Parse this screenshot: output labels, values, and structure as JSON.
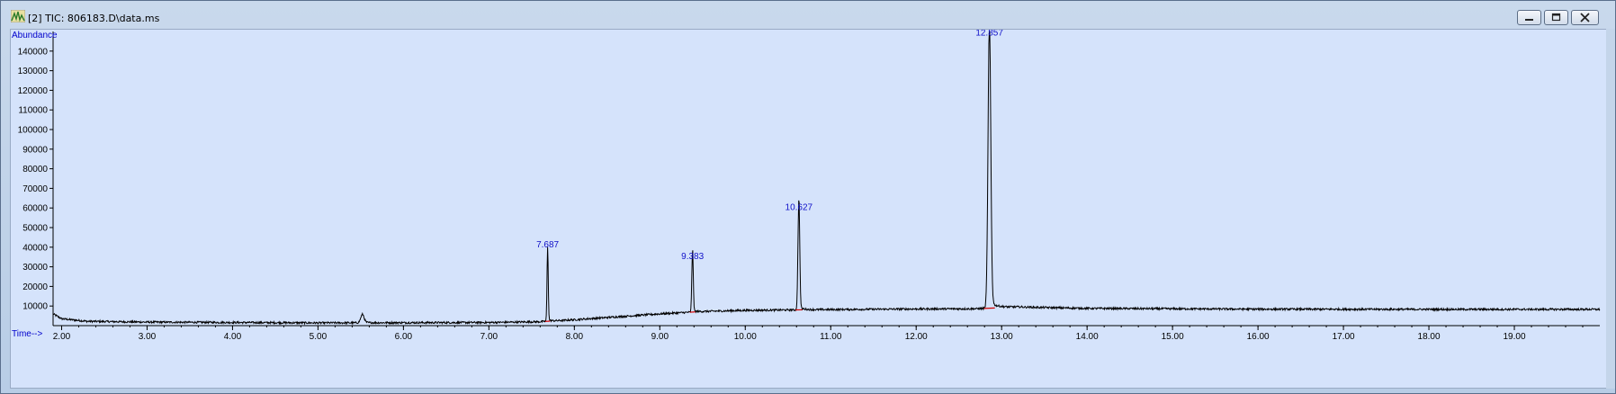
{
  "window": {
    "title": "[2] TIC: 806183.D\\data.ms",
    "app_icon": "chromatogram-app-icon",
    "controls": [
      "minimize-icon",
      "restore-icon",
      "close-icon"
    ]
  },
  "chart_data": {
    "type": "line",
    "title": "",
    "xlabel": "Time-->",
    "ylabel": "Abundance",
    "xlim": [
      1.9,
      20.0
    ],
    "ylim": [
      0,
      150000
    ],
    "x_ticks": [
      2.0,
      3.0,
      4.0,
      5.0,
      6.0,
      7.0,
      8.0,
      9.0,
      10.0,
      11.0,
      12.0,
      13.0,
      14.0,
      15.0,
      16.0,
      17.0,
      18.0,
      19.0
    ],
    "x_tick_labels": [
      "2.00",
      "3.00",
      "4.00",
      "5.00",
      "6.00",
      "7.00",
      "8.00",
      "9.00",
      "10.00",
      "11.00",
      "12.00",
      "13.00",
      "14.00",
      "15.00",
      "16.00",
      "17.00",
      "18.00",
      "19.00"
    ],
    "y_ticks": [
      10000,
      20000,
      30000,
      40000,
      50000,
      60000,
      70000,
      80000,
      90000,
      100000,
      110000,
      120000,
      130000,
      140000
    ],
    "y_tick_labels": [
      "10000",
      "20000",
      "30000",
      "40000",
      "50000",
      "60000",
      "70000",
      "80000",
      "90000",
      "100000",
      "110000",
      "120000",
      "130000",
      "140000"
    ],
    "grid": false,
    "series": [
      {
        "baseline": [
          [
            1.9,
            6000
          ],
          [
            2.0,
            3500
          ],
          [
            2.3,
            2200
          ],
          [
            3.0,
            1800
          ],
          [
            5.0,
            1400
          ],
          [
            7.0,
            1600
          ],
          [
            7.6,
            2000
          ],
          [
            8.0,
            3000
          ],
          [
            8.5,
            4500
          ],
          [
            9.0,
            6000
          ],
          [
            9.5,
            7200
          ],
          [
            10.0,
            7800
          ],
          [
            11.0,
            8200
          ],
          [
            12.0,
            8500
          ],
          [
            12.7,
            8600
          ],
          [
            13.2,
            9500
          ],
          [
            14.0,
            8800
          ],
          [
            16.0,
            8400
          ],
          [
            18.0,
            8300
          ],
          [
            20.0,
            8300
          ]
        ],
        "peaks": [
          {
            "rt": 5.52,
            "height": 4200,
            "width": 0.02
          },
          {
            "rt": 7.687,
            "height": 38000,
            "width": 0.007
          },
          {
            "rt": 9.383,
            "height": 32000,
            "width": 0.008
          },
          {
            "rt": 10.627,
            "height": 57000,
            "width": 0.01
          },
          {
            "rt": 12.857,
            "height": 146000,
            "width": 0.016
          }
        ]
      }
    ],
    "peak_labels": [
      {
        "x": 7.687,
        "y": 38000,
        "text": "7.687"
      },
      {
        "x": 9.383,
        "y": 32000,
        "text": "9.383"
      },
      {
        "x": 10.627,
        "y": 57000,
        "text": "10.627"
      },
      {
        "x": 12.857,
        "y": 146000,
        "text": "12.857"
      }
    ],
    "colors": {
      "trace": "#000000",
      "axis_label": "#0000cc",
      "peak_label": "#1010c8",
      "integration_marker": "#d40000",
      "background": "#d5e3fb"
    }
  }
}
